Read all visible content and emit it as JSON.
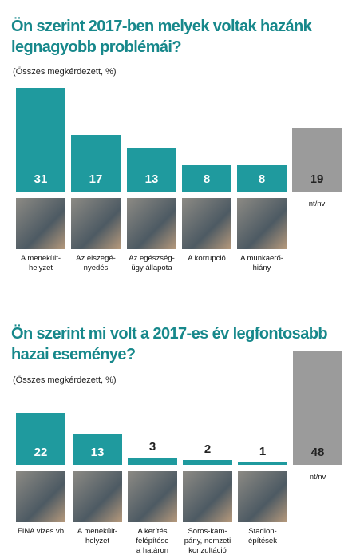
{
  "chart_data": [
    {
      "type": "bar",
      "title": "Ön szerint 2017-ben melyek voltak hazánk legnagyobb problémái?",
      "subtitle": "(Összes megkérdezett, %)",
      "categories": [
        "A menekült-\nhelyzet",
        "Az elszegé-\nnyedés",
        "Az egészség-\nügy állapota",
        "A korrupció",
        "A munkaerő-\nhiány",
        "nt/nv"
      ],
      "values": [
        31,
        17,
        13,
        8,
        8,
        19
      ],
      "colors": [
        "#1f9a9e",
        "#1f9a9e",
        "#1f9a9e",
        "#1f9a9e",
        "#1f9a9e",
        "#9b9b9b"
      ],
      "value_label_colors": [
        "#ffffff",
        "#ffffff",
        "#ffffff",
        "#ffffff",
        "#ffffff",
        "#222222"
      ]
    },
    {
      "type": "bar",
      "title": "Ön szerint mi volt a 2017-es év legfontosabb hazai eseménye?",
      "subtitle": "(Összes megkérdezett, %)",
      "categories": [
        "FINA vizes vb",
        "A menekült-\nhelyzet",
        "A kerítés\nfelépítése\na határon",
        "Soros-kam-\npány, nemzeti\nkonzultáció",
        "Stadion-\népítések",
        "nt/nv"
      ],
      "values": [
        22,
        13,
        3,
        2,
        1,
        48
      ],
      "colors": [
        "#1f9a9e",
        "#1f9a9e",
        "#1f9a9e",
        "#1f9a9e",
        "#1f9a9e",
        "#9b9b9b"
      ],
      "value_label_colors": [
        "#ffffff",
        "#ffffff",
        "#222222",
        "#222222",
        "#222222",
        "#222222"
      ]
    }
  ]
}
